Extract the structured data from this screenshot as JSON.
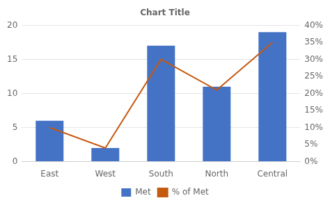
{
  "chart_data": {
    "type": "bar",
    "title": "Chart Title",
    "categories": [
      "East",
      "West",
      "South",
      "North",
      "Central"
    ],
    "series": [
      {
        "name": "Met",
        "type": "bar",
        "color": "#4472C4",
        "values": [
          6,
          2,
          17,
          11,
          19
        ]
      },
      {
        "name": "% of Met",
        "type": "line",
        "color": "#C55A11",
        "marker": "none",
        "axis": "y2",
        "values": [
          0.1,
          0.04,
          0.3,
          0.21,
          0.35
        ]
      }
    ],
    "ylim": [
      0,
      20
    ],
    "yticks": [
      0,
      5,
      10,
      15,
      20
    ],
    "y2lim": [
      0,
      0.4
    ],
    "y2ticks": [
      {
        "value": 0.0,
        "label": "0%"
      },
      {
        "value": 0.05,
        "label": "5%"
      },
      {
        "value": 0.1,
        "label": "10%"
      },
      {
        "value": 0.15,
        "label": "15%"
      },
      {
        "value": 0.2,
        "label": "20%"
      },
      {
        "value": 0.25,
        "label": "25%"
      },
      {
        "value": 0.3,
        "label": "30%"
      },
      {
        "value": 0.35,
        "label": "35%"
      },
      {
        "value": 0.4,
        "label": "40%"
      }
    ],
    "grid": true,
    "legend": "bottom"
  }
}
